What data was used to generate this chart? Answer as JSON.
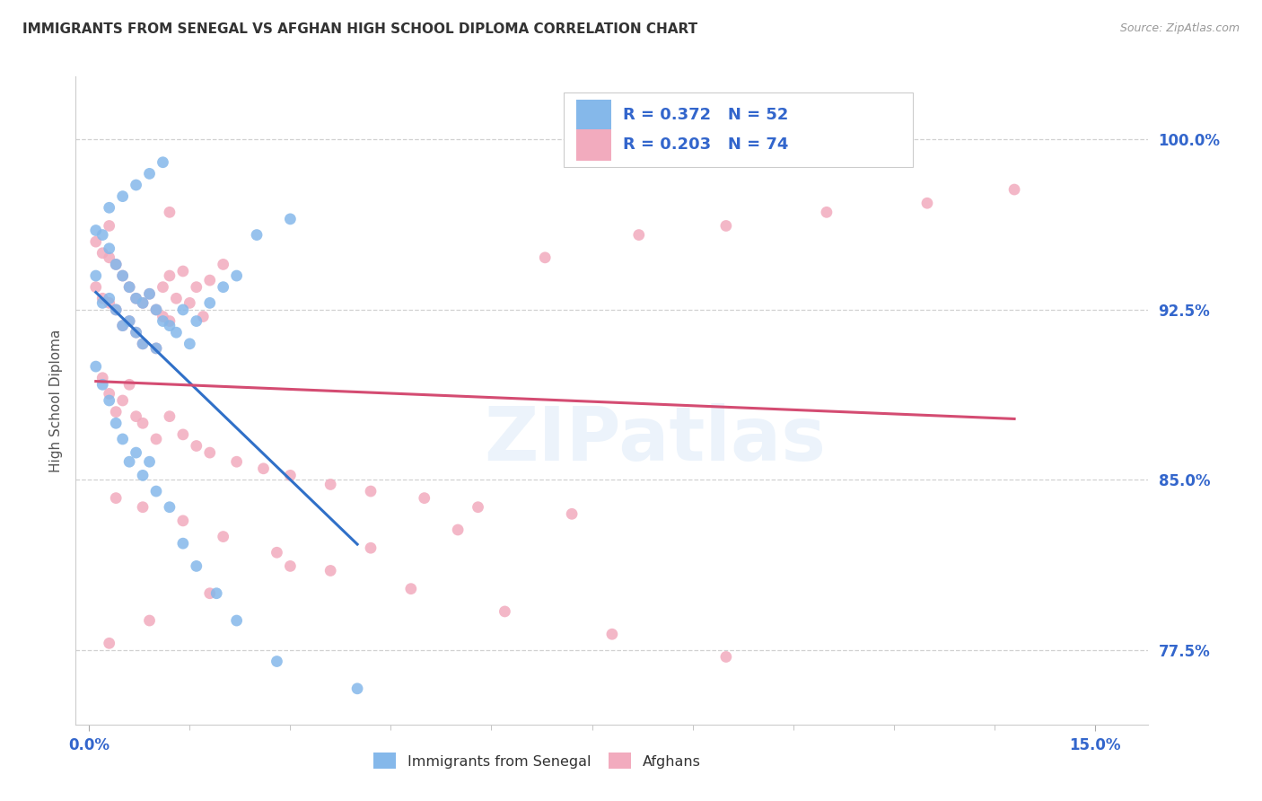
{
  "title": "IMMIGRANTS FROM SENEGAL VS AFGHAN HIGH SCHOOL DIPLOMA CORRELATION CHART",
  "source": "Source: ZipAtlas.com",
  "ylabel": "High School Diploma",
  "ylim": [
    0.742,
    1.028
  ],
  "xlim": [
    -0.002,
    0.158
  ],
  "senegal_color": "#85B8EA",
  "afghan_color": "#F2ABBE",
  "line_senegal_color": "#3070C8",
  "line_afghan_color": "#D44C72",
  "watermark": "ZIPatlas",
  "yticks": [
    0.775,
    0.85,
    0.925,
    1.0
  ],
  "ytick_labels": [
    "77.5%",
    "85.0%",
    "92.5%",
    "100.0%"
  ],
  "xticks": [
    0.0,
    0.15
  ],
  "xtick_labels": [
    "0.0%",
    "15.0%"
  ],
  "R_senegal": "0.372",
  "N_senegal": "52",
  "R_afghan": "0.203",
  "N_afghan": "74",
  "legend_label_senegal": "Immigrants from Senegal",
  "legend_label_afghan": "Afghans",
  "senegal_x": [
    0.001,
    0.001,
    0.002,
    0.002,
    0.003,
    0.003,
    0.004,
    0.004,
    0.005,
    0.005,
    0.006,
    0.006,
    0.007,
    0.007,
    0.008,
    0.008,
    0.009,
    0.01,
    0.01,
    0.011,
    0.012,
    0.013,
    0.014,
    0.015,
    0.016,
    0.018,
    0.02,
    0.022,
    0.025,
    0.03,
    0.001,
    0.002,
    0.003,
    0.004,
    0.005,
    0.006,
    0.007,
    0.008,
    0.009,
    0.01,
    0.012,
    0.014,
    0.016,
    0.019,
    0.022,
    0.028,
    0.04,
    0.003,
    0.005,
    0.007,
    0.009,
    0.011
  ],
  "senegal_y": [
    0.96,
    0.94,
    0.958,
    0.928,
    0.952,
    0.93,
    0.945,
    0.925,
    0.94,
    0.918,
    0.935,
    0.92,
    0.93,
    0.915,
    0.928,
    0.91,
    0.932,
    0.925,
    0.908,
    0.92,
    0.918,
    0.915,
    0.925,
    0.91,
    0.92,
    0.928,
    0.935,
    0.94,
    0.958,
    0.965,
    0.9,
    0.892,
    0.885,
    0.875,
    0.868,
    0.858,
    0.862,
    0.852,
    0.858,
    0.845,
    0.838,
    0.822,
    0.812,
    0.8,
    0.788,
    0.77,
    0.758,
    0.97,
    0.975,
    0.98,
    0.985,
    0.99
  ],
  "afghan_x": [
    0.001,
    0.001,
    0.002,
    0.002,
    0.003,
    0.003,
    0.004,
    0.004,
    0.005,
    0.005,
    0.006,
    0.006,
    0.007,
    0.007,
    0.008,
    0.008,
    0.009,
    0.01,
    0.01,
    0.011,
    0.011,
    0.012,
    0.012,
    0.013,
    0.014,
    0.015,
    0.016,
    0.017,
    0.018,
    0.02,
    0.002,
    0.003,
    0.004,
    0.005,
    0.006,
    0.007,
    0.008,
    0.01,
    0.012,
    0.014,
    0.016,
    0.018,
    0.022,
    0.026,
    0.03,
    0.036,
    0.042,
    0.05,
    0.058,
    0.068,
    0.082,
    0.095,
    0.11,
    0.125,
    0.138,
    0.004,
    0.008,
    0.014,
    0.02,
    0.028,
    0.036,
    0.048,
    0.062,
    0.078,
    0.095,
    0.003,
    0.009,
    0.018,
    0.03,
    0.042,
    0.055,
    0.072,
    0.003,
    0.012
  ],
  "afghan_y": [
    0.955,
    0.935,
    0.95,
    0.93,
    0.948,
    0.928,
    0.945,
    0.925,
    0.94,
    0.918,
    0.935,
    0.92,
    0.93,
    0.915,
    0.928,
    0.91,
    0.932,
    0.925,
    0.908,
    0.922,
    0.935,
    0.92,
    0.94,
    0.93,
    0.942,
    0.928,
    0.935,
    0.922,
    0.938,
    0.945,
    0.895,
    0.888,
    0.88,
    0.885,
    0.892,
    0.878,
    0.875,
    0.868,
    0.878,
    0.87,
    0.865,
    0.862,
    0.858,
    0.855,
    0.852,
    0.848,
    0.845,
    0.842,
    0.838,
    0.948,
    0.958,
    0.962,
    0.968,
    0.972,
    0.978,
    0.842,
    0.838,
    0.832,
    0.825,
    0.818,
    0.81,
    0.802,
    0.792,
    0.782,
    0.772,
    0.778,
    0.788,
    0.8,
    0.812,
    0.82,
    0.828,
    0.835,
    0.962,
    0.968
  ]
}
